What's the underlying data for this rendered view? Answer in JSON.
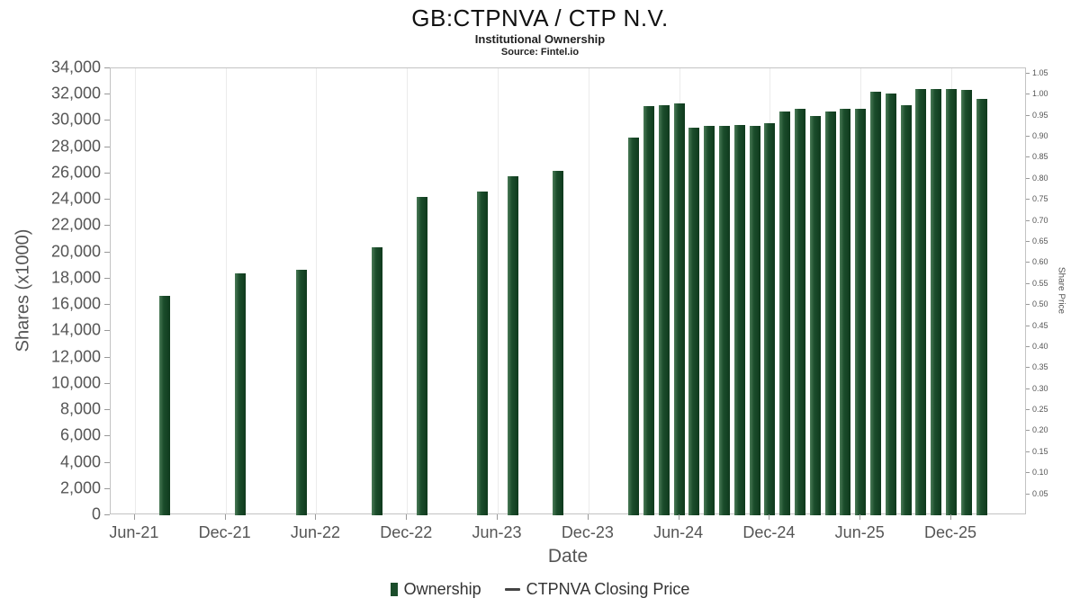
{
  "chart_data": {
    "type": "bar",
    "title": "GB:CTPNVA / CTP N.V.",
    "subtitle": "Institutional Ownership",
    "source": "Source: Fintel.io",
    "xlabel": "Date",
    "ylabel_left": "Shares (x1000)",
    "ylabel_right": "Share Price",
    "colors": {
      "bar": "#1b4d2b",
      "bar_edge_light": "#4a7a57",
      "bar_edge_dark": "#0f3a1d",
      "price_line": "#444444",
      "gridline": "#ebebeb",
      "axis_text": "#555555"
    },
    "y_left": {
      "min": 0,
      "max": 34000,
      "tick_step": 2000
    },
    "y_right": {
      "axis_min": 0,
      "axis_max": 1.0625,
      "tick_min": 0.05,
      "tick_max": 1.05,
      "tick_step": 0.05
    },
    "x_domain": {
      "min": -1.6,
      "max": 59
    },
    "x_ticks": [
      {
        "label": "Jun-21",
        "i": 0
      },
      {
        "label": "Dec-21",
        "i": 6
      },
      {
        "label": "Jun-22",
        "i": 12
      },
      {
        "label": "Dec-22",
        "i": 18
      },
      {
        "label": "Jun-23",
        "i": 24
      },
      {
        "label": "Dec-23",
        "i": 30
      },
      {
        "label": "Jun-24",
        "i": 36
      },
      {
        "label": "Dec-24",
        "i": 42
      },
      {
        "label": "Jun-25",
        "i": 48
      },
      {
        "label": "Dec-25",
        "i": 54
      }
    ],
    "series": [
      {
        "name": "Ownership",
        "type": "bar",
        "color": "#1b4d2b",
        "points": [
          {
            "x": "Aug-21",
            "i": 2,
            "v": 16700
          },
          {
            "x": "Jan-22",
            "i": 7,
            "v": 18400
          },
          {
            "x": "May-22",
            "i": 11,
            "v": 18700
          },
          {
            "x": "Oct-22",
            "i": 16,
            "v": 20400
          },
          {
            "x": "Jan-23",
            "i": 19,
            "v": 24200
          },
          {
            "x": "May-23",
            "i": 23,
            "v": 24600
          },
          {
            "x": "Jul-23",
            "i": 25,
            "v": 25800
          },
          {
            "x": "Oct-23",
            "i": 28,
            "v": 26200
          },
          {
            "x": "Mar-24",
            "i": 33,
            "v": 28700
          },
          {
            "x": "Apr-24",
            "i": 34,
            "v": 31100
          },
          {
            "x": "May-24",
            "i": 35,
            "v": 31200
          },
          {
            "x": "Jun-24",
            "i": 36,
            "v": 31350
          },
          {
            "x": "Jul-24",
            "i": 37,
            "v": 29500
          },
          {
            "x": "Aug-24",
            "i": 38,
            "v": 29600
          },
          {
            "x": "Sep-24",
            "i": 39,
            "v": 29650
          },
          {
            "x": "Oct-24",
            "i": 40,
            "v": 29700
          },
          {
            "x": "Nov-24",
            "i": 41,
            "v": 29600
          },
          {
            "x": "Dec-24",
            "i": 42,
            "v": 29850
          },
          {
            "x": "Jan-25",
            "i": 43,
            "v": 30750
          },
          {
            "x": "Feb-25",
            "i": 44,
            "v": 30950
          },
          {
            "x": "Mar-25",
            "i": 45,
            "v": 30400
          },
          {
            "x": "Apr-25",
            "i": 46,
            "v": 30750
          },
          {
            "x": "May-25",
            "i": 47,
            "v": 30950
          },
          {
            "x": "Jun-25",
            "i": 48,
            "v": 30950
          },
          {
            "x": "Jul-25",
            "i": 49,
            "v": 32200
          },
          {
            "x": "Aug-25",
            "i": 50,
            "v": 32100
          },
          {
            "x": "Sep-25",
            "i": 51,
            "v": 31200
          },
          {
            "x": "Oct-25",
            "i": 52,
            "v": 32450
          },
          {
            "x": "Nov-25",
            "i": 53,
            "v": 32400
          },
          {
            "x": "Dec-25",
            "i": 54,
            "v": 32400
          },
          {
            "x": "Jan-26",
            "i": 55,
            "v": 32350
          },
          {
            "x": "Feb-26",
            "i": 56,
            "v": 31700
          }
        ]
      },
      {
        "name": "CTPNVA Closing Price",
        "type": "line",
        "color": "#444444",
        "points": []
      }
    ]
  }
}
